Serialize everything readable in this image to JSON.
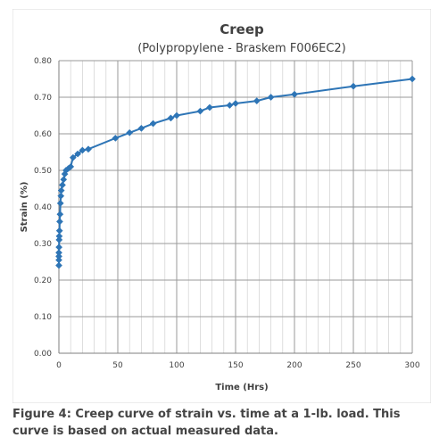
{
  "caption": "Figure 4: Creep curve of strain vs. time at a 1-lb. load. This curve is based on actual measured data.",
  "chart_data": {
    "type": "line",
    "title": "Creep",
    "subtitle": "(Polypropylene - Braskem F006EC2)",
    "xlabel": "Time (Hrs)",
    "ylabel": "Strain (%)",
    "xlim": [
      0,
      300
    ],
    "ylim": [
      0,
      0.8
    ],
    "xticks": [
      0,
      50,
      100,
      150,
      200,
      250,
      300
    ],
    "yticks": [
      0.0,
      0.1,
      0.2,
      0.3,
      0.4,
      0.5,
      0.6,
      0.7,
      0.8
    ],
    "ytick_labels": [
      "0.00",
      "0.10",
      "0.20",
      "0.30",
      "0.40",
      "0.50",
      "0.60",
      "0.70",
      "0.80"
    ],
    "xtick_labels": [
      "0",
      "50",
      "100",
      "150",
      "200",
      "250",
      "300"
    ],
    "grid": true,
    "marker": "diamond",
    "series_color": "#2e75b6",
    "grid_color": "#a6a6a6",
    "series": [
      {
        "x": [
          0,
          0,
          0,
          0,
          0.1,
          0.2,
          0.3,
          0.5,
          0.7,
          1,
          1.3,
          1.7,
          2,
          3,
          4,
          5,
          6,
          8,
          10,
          12,
          16,
          20,
          25,
          48,
          60,
          70,
          80,
          95,
          100,
          120,
          128,
          145,
          150,
          168,
          180,
          200,
          250,
          300
        ],
        "y": [
          0.24,
          0.255,
          0.265,
          0.275,
          0.29,
          0.31,
          0.32,
          0.335,
          0.36,
          0.38,
          0.41,
          0.43,
          0.445,
          0.46,
          0.475,
          0.49,
          0.5,
          0.505,
          0.51,
          0.535,
          0.545,
          0.555,
          0.558,
          0.588,
          0.603,
          0.615,
          0.628,
          0.643,
          0.65,
          0.662,
          0.672,
          0.678,
          0.683,
          0.69,
          0.7,
          0.708,
          0.73,
          0.75
        ]
      }
    ]
  }
}
